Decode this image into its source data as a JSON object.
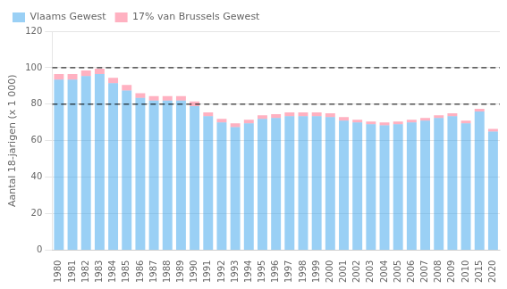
{
  "chart_data": {
    "type": "bar",
    "stacked": true,
    "ylabel": "Aantal 18-jarigen (x 1 000)",
    "categories": [
      "1980",
      "1981",
      "1982",
      "1983",
      "1984",
      "1985",
      "1986",
      "1987",
      "1988",
      "1989",
      "1990",
      "1991",
      "1992",
      "1993",
      "1994",
      "1995",
      "1996",
      "1997",
      "1998",
      "1999",
      "2000",
      "2001",
      "2002",
      "2003",
      "2004",
      "2005",
      "2006",
      "2007",
      "2008",
      "2009",
      "2010",
      "2015",
      "2020"
    ],
    "series": [
      {
        "name": "Vlaams Gewest",
        "values": [
          93.5,
          93.5,
          95.5,
          96.5,
          91.5,
          87.5,
          83.5,
          82.0,
          82.0,
          82.0,
          79.0,
          73.5,
          70.0,
          67.5,
          69.5,
          72.0,
          72.5,
          73.5,
          73.5,
          73.5,
          73.0,
          71.0,
          70.0,
          69.0,
          68.5,
          69.0,
          70.0,
          71.0,
          72.5,
          73.5,
          69.5,
          76.0,
          65.0
        ]
      },
      {
        "name": "17% van Brussels Gewest",
        "values": [
          3.0,
          3.0,
          3.0,
          3.0,
          3.0,
          3.0,
          2.5,
          2.5,
          2.5,
          2.5,
          2.5,
          2.0,
          2.0,
          2.0,
          2.0,
          2.0,
          2.0,
          2.0,
          2.0,
          2.0,
          2.0,
          2.0,
          1.5,
          1.5,
          1.5,
          1.5,
          1.5,
          1.5,
          1.5,
          1.5,
          1.5,
          1.5,
          1.5
        ]
      }
    ],
    "hlines": [
      100,
      80
    ],
    "ylim": [
      0,
      120
    ],
    "yticks": [
      0,
      20,
      40,
      60,
      80,
      100,
      120
    ],
    "grid": true,
    "legend": "top-left"
  }
}
